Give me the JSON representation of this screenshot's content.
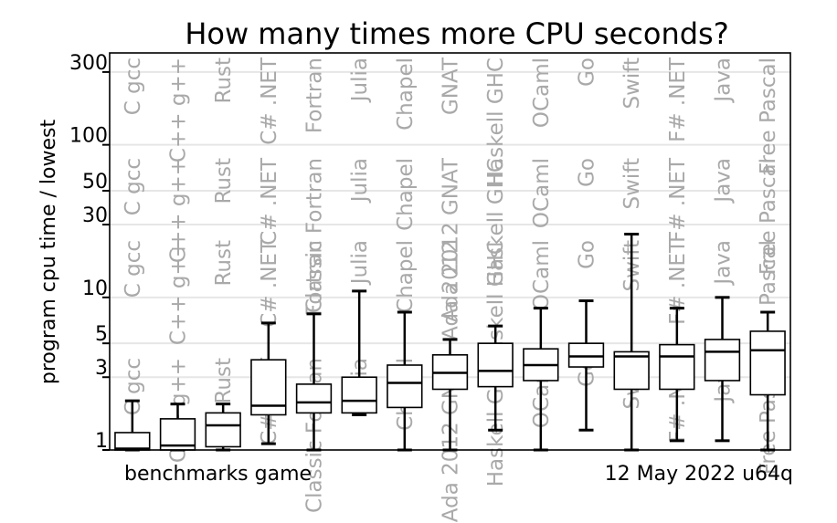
{
  "chart_data": {
    "type": "box",
    "title": "How many times more CPU seconds?",
    "ylabel": "program cpu time / lowest",
    "xlabel": "",
    "y_scale": "log",
    "ylim": [
      1,
      400
    ],
    "y_ticks": [
      1,
      3,
      5,
      10,
      30,
      50,
      100,
      300
    ],
    "y_tick_labels": [
      "1",
      "3",
      "5",
      "10",
      "30",
      "50",
      "100",
      "300"
    ],
    "grid": true,
    "footer_left": "benchmarks game",
    "footer_right": "12 May 2022 u64q",
    "categories": [
      "C gcc",
      "C++ g++",
      "Rust",
      "C# .NET",
      "Classic Fortran",
      "Julia",
      "Chapel",
      "Ada 2012 GNAT",
      "Haskell GHC",
      "OCaml",
      "Go",
      "Swift",
      "F# .NET",
      "Java",
      "Free Pascal"
    ],
    "labels_top": [
      "C gcc",
      "C++ g++",
      "Rust",
      "C# .NET",
      "Fortran",
      "Julia",
      "Chapel",
      "GNAT",
      "Haskell GHC",
      "OCaml",
      "Go",
      "Swift",
      "F# .NET",
      "Java",
      "Free Pascal"
    ],
    "labels_mid": [
      "C gcc",
      "C++ g++",
      "Rust",
      "C# .NET",
      "Classic Fortran",
      "Julia",
      "Chapel",
      "Ada 2012 GNAT",
      "Haskell GHC",
      "OCaml",
      "Go",
      "Swift",
      "F# .NET",
      "Java",
      "Free Pascal"
    ],
    "labels_low": [
      "C gcc",
      "C++ g++",
      "Rust",
      "C# .NET",
      "Fortran",
      "Julia",
      "Chapel",
      "Ada 2012",
      "Haskell GHC",
      "OCaml",
      "Go",
      "Swift",
      "F# .NET",
      "Java",
      "Pascal"
    ],
    "labels_bottom": [
      "C gcc",
      "C++ g++",
      "Rust",
      "C# .NET",
      "Classic Fortran",
      "Julia",
      "Chapel",
      "Ada 2012 GNAT",
      "Haskell GHC",
      "OCaml",
      "Go",
      "Swift",
      "F# .NET",
      "Java",
      "Free Pascal"
    ],
    "boxes": [
      {
        "min": 1.0,
        "q1": 1.0,
        "median": 1.02,
        "q3": 1.3,
        "max": 2.1
      },
      {
        "min": 1.0,
        "q1": 1.0,
        "median": 1.07,
        "q3": 1.6,
        "max": 2.0
      },
      {
        "min": 1.0,
        "q1": 1.05,
        "median": 1.45,
        "q3": 1.75,
        "max": 2.0
      },
      {
        "min": 1.1,
        "q1": 1.7,
        "median": 1.95,
        "q3": 3.9,
        "max": 6.8
      },
      {
        "min": 1.0,
        "q1": 1.75,
        "median": 2.05,
        "q3": 2.7,
        "max": 7.8
      },
      {
        "min": 1.7,
        "q1": 1.75,
        "median": 2.1,
        "q3": 3.0,
        "max": 11.0
      },
      {
        "min": 1.0,
        "q1": 1.9,
        "median": 2.75,
        "q3": 3.6,
        "max": 8.0
      },
      {
        "min": 1.0,
        "q1": 2.5,
        "median": 3.2,
        "q3": 4.2,
        "max": 5.3
      },
      {
        "min": 1.35,
        "q1": 2.6,
        "median": 3.3,
        "q3": 5.0,
        "max": 6.5
      },
      {
        "min": 1.0,
        "q1": 2.85,
        "median": 3.6,
        "q3": 4.6,
        "max": 8.5
      },
      {
        "min": 1.35,
        "q1": 3.5,
        "median": 4.1,
        "q3": 5.0,
        "max": 9.5
      },
      {
        "min": 1.0,
        "q1": 2.5,
        "median": 4.1,
        "q3": 4.4,
        "max": 26.0
      },
      {
        "min": 1.15,
        "q1": 2.5,
        "median": 4.1,
        "q3": 4.9,
        "max": 8.5
      },
      {
        "min": 1.15,
        "q1": 2.85,
        "median": 4.4,
        "q3": 5.3,
        "max": 10.0
      },
      {
        "min": 1.0,
        "q1": 2.3,
        "median": 4.5,
        "q3": 6.0,
        "max": 8.0
      }
    ]
  }
}
